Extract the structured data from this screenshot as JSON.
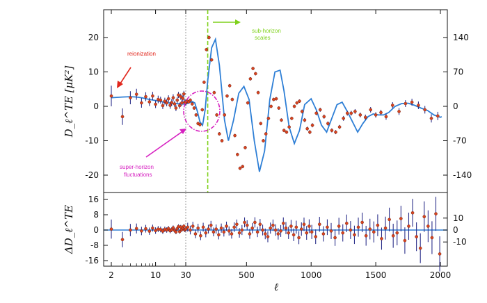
{
  "colors": {
    "model_line": "#2e7fd6",
    "data_point": "#d8431f",
    "error_bar": "#2b2f8a",
    "reionization": "#e1261c",
    "super_horizon": "#d61fc0",
    "sub_horizon": "#7fd11b",
    "divider": "#999999"
  },
  "chart_data": [
    {
      "type": "line",
      "panel": "top",
      "ylabel": "D_ℓ^TE [μK²]",
      "xscale": "piecewise: log for ℓ < 30, linear for ℓ ≥ 30",
      "ylim": [
        -26,
        28
      ],
      "yticks_left": [
        "20",
        "10",
        "0",
        "-10",
        "-20"
      ],
      "yticks_left_values": [
        20,
        10,
        0,
        -10,
        -20
      ],
      "yticks_right": [
        "140",
        "70",
        "0",
        "-70",
        "-140"
      ],
      "yticks_right_values": [
        140,
        70,
        0,
        -70,
        -140
      ],
      "right_axis_scale": 7,
      "series": [
        {
          "role": "model",
          "x": [
            2,
            3,
            4,
            5,
            6,
            8,
            10,
            15,
            20,
            25,
            30,
            40,
            60,
            80,
            100,
            120,
            140,
            160,
            180,
            200,
            230,
            260,
            290,
            308,
            330,
            360,
            400,
            440,
            480,
            520,
            560,
            600,
            640,
            680,
            720,
            760,
            790,
            830,
            870,
            910,
            950,
            1000,
            1040,
            1080,
            1120,
            1160,
            1200,
            1240,
            1280,
            1320,
            1360,
            1400,
            1440,
            1480,
            1520,
            1560,
            1600,
            1650,
            1700,
            1750,
            1800,
            1850,
            1900,
            1950,
            2000,
            2010
          ],
          "y": [
            2.5,
            2.7,
            2.8,
            2.7,
            2.5,
            2.0,
            1.7,
            1.1,
            0.8,
            0.7,
            0.6,
            0.8,
            1.1,
            1.4,
            1.0,
            -1.5,
            -4.5,
            -5.5,
            -1.0,
            7.5,
            17.0,
            19.5,
            12.0,
            5.0,
            -4.0,
            -10.0,
            -4.0,
            3.8,
            5.8,
            2.0,
            -10.0,
            -19.0,
            -13.0,
            2.0,
            10.0,
            10.5,
            4.5,
            -6.0,
            -10.8,
            -7.0,
            0.5,
            2.2,
            -1.0,
            -5.5,
            -7.5,
            -3.5,
            0.5,
            1.2,
            -1.5,
            -4.5,
            -7.5,
            -5.0,
            -3.0,
            -2.2,
            -2.5,
            -2.5,
            -1.8,
            0.0,
            0.8,
            0.9,
            0.3,
            -0.5,
            -1.2,
            -2.5,
            -3.2,
            -3.0
          ]
        },
        {
          "role": "data",
          "x": [
            2,
            3,
            4,
            5,
            6,
            7,
            8,
            9,
            10,
            11,
            12,
            13,
            14,
            15,
            16,
            17,
            18,
            19,
            20,
            21,
            22,
            23,
            24,
            25,
            26,
            27,
            28,
            29,
            30,
            40,
            52,
            65,
            80,
            95,
            110,
            125,
            140,
            158,
            172,
            190,
            210,
            230,
            250,
            270,
            290,
            310,
            330,
            350,
            370,
            390,
            410,
            430,
            450,
            470,
            490,
            510,
            530,
            550,
            570,
            590,
            610,
            630,
            650,
            670,
            690,
            710,
            730,
            750,
            770,
            790,
            810,
            830,
            850,
            870,
            890,
            910,
            930,
            950,
            970,
            990,
            1010,
            1040,
            1070,
            1100,
            1130,
            1160,
            1190,
            1220,
            1250,
            1280,
            1310,
            1340,
            1380,
            1420,
            1460,
            1500,
            1540,
            1580,
            1630,
            1680,
            1730,
            1780,
            1830,
            1880,
            1930,
            1980
          ],
          "y": [
            3.0,
            -3.0,
            2.5,
            3.5,
            1.0,
            2.8,
            1.3,
            3.0,
            0.6,
            2.0,
            1.8,
            0.2,
            1.5,
            1.0,
            2.2,
            0.3,
            1.1,
            2.5,
            0.7,
            -0.5,
            1.8,
            3.3,
            0.2,
            2.8,
            1.0,
            2.3,
            3.6,
            1.2,
            1.0,
            1.5,
            1.3,
            1.8,
            0.7,
            -0.5,
            -2.5,
            -5.0,
            -5.3,
            -1.0,
            7.0,
            16.5,
            20.0,
            13.5,
            4.0,
            -2.5,
            -8.0,
            -10.0,
            -2.5,
            3.0,
            6.0,
            2.0,
            -8.5,
            -14.0,
            -18.0,
            -17.5,
            -12.0,
            1.0,
            8.0,
            11.0,
            9.5,
            4.0,
            -5.0,
            -10.0,
            -8.0,
            -3.5,
            0.0,
            2.0,
            2.2,
            -0.5,
            -4.0,
            -7.0,
            -7.5,
            -6.0,
            -3.5,
            0.0,
            1.0,
            1.5,
            -1.5,
            -4.0,
            -6.5,
            -7.5,
            -5.5,
            -2.0,
            -1.0,
            -3.0,
            -5.0,
            -7.0,
            -7.5,
            -6.0,
            -3.5,
            -2.0,
            -2.0,
            -1.5,
            -2.5,
            -3.2,
            -1.0,
            -2.5,
            -1.8,
            -3.0,
            0.3,
            -1.5,
            0.8,
            1.2,
            0.3,
            -1.0,
            -3.5,
            -2.8
          ],
          "yerr": [
            3.0,
            2.4,
            1.9,
            1.6,
            1.4,
            1.3,
            1.2,
            1.2,
            1.1,
            1.1,
            1.0,
            1.0,
            1.0,
            1.0,
            1.0,
            1.0,
            1.0,
            1.0,
            0.9,
            0.9,
            0.9,
            0.9,
            0.9,
            0.9,
            0.9,
            0.9,
            0.9,
            0.9,
            0.9,
            0.6,
            0.5,
            0.5,
            0.5,
            0.5,
            0.5,
            0.5,
            0.5,
            0.5,
            0.5,
            0.5,
            0.5,
            0.5,
            0.5,
            0.5,
            0.5,
            0.5,
            0.5,
            0.5,
            0.5,
            0.5,
            0.5,
            0.5,
            0.5,
            0.5,
            0.5,
            0.5,
            0.5,
            0.5,
            0.5,
            0.5,
            0.5,
            0.5,
            0.5,
            0.5,
            0.5,
            0.5,
            0.5,
            0.5,
            0.5,
            0.5,
            0.5,
            0.5,
            0.5,
            0.5,
            0.5,
            0.5,
            0.6,
            0.6,
            0.6,
            0.6,
            0.6,
            0.6,
            0.6,
            0.6,
            0.6,
            0.6,
            0.6,
            0.6,
            0.7,
            0.7,
            0.7,
            0.7,
            0.7,
            0.8,
            0.8,
            0.8,
            0.8,
            0.9,
            0.9,
            1.0,
            1.0,
            1.0,
            1.1,
            1.1,
            1.2,
            1.2
          ]
        }
      ],
      "annotations": [
        {
          "text": "reionization",
          "color": "reionization"
        },
        {
          "text": "super-horizon",
          "text2": "fluctuations",
          "color": "super_horizon"
        },
        {
          "text": "sub-horizon",
          "text2": "scales",
          "color": "sub_horizon"
        }
      ],
      "vlines": [
        {
          "x": 30,
          "style": "dotted",
          "color": "divider"
        },
        {
          "x": 200,
          "style": "dashed",
          "color": "sub_horizon"
        }
      ]
    },
    {
      "type": "scatter",
      "panel": "bottom",
      "ylabel": "ΔD_ℓ^TE",
      "xlabel": "ℓ",
      "xticks": [
        "2",
        "10",
        "30",
        "500",
        "1000",
        "1500",
        "2000"
      ],
      "xticks_values": [
        2,
        10,
        30,
        500,
        1000,
        1500,
        2000
      ],
      "ylim": [
        -19,
        19
      ],
      "yticks_left": [
        "16",
        "8",
        "0",
        "-8",
        "-16"
      ],
      "yticks_left_values": [
        16,
        8,
        0,
        -8,
        -16
      ],
      "yticks_right": [
        "10",
        "0",
        "-10"
      ],
      "yticks_right_values": [
        10,
        0,
        -10
      ],
      "right_axis_scale": 1.6,
      "series": [
        {
          "role": "residuals",
          "x": [
            2,
            3,
            4,
            5,
            6,
            7,
            8,
            9,
            10,
            11,
            12,
            13,
            14,
            15,
            16,
            17,
            18,
            19,
            20,
            21,
            22,
            23,
            24,
            25,
            26,
            27,
            28,
            29,
            30,
            45,
            65,
            85,
            105,
            125,
            145,
            165,
            185,
            205,
            225,
            245,
            265,
            285,
            305,
            325,
            345,
            365,
            385,
            405,
            425,
            445,
            465,
            485,
            505,
            525,
            545,
            565,
            585,
            605,
            625,
            645,
            665,
            685,
            705,
            725,
            745,
            765,
            785,
            805,
            825,
            845,
            865,
            885,
            905,
            925,
            945,
            965,
            985,
            1005,
            1035,
            1065,
            1095,
            1125,
            1155,
            1185,
            1215,
            1245,
            1275,
            1305,
            1335,
            1365,
            1395,
            1425,
            1455,
            1485,
            1515,
            1545,
            1575,
            1605,
            1635,
            1665,
            1695,
            1725,
            1755,
            1785,
            1815,
            1845,
            1875,
            1905,
            1935,
            1965,
            1995
          ],
          "y": [
            0.5,
            -5.0,
            0.0,
            0.8,
            -0.5,
            0.7,
            -0.6,
            1.0,
            -0.3,
            0.5,
            0.3,
            -0.6,
            0.4,
            0.0,
            0.8,
            -0.4,
            0.2,
            1.2,
            -0.2,
            -1.0,
            0.7,
            1.8,
            -0.8,
            1.6,
            0.2,
            1.0,
            2.0,
            0.0,
            0.5,
            1.5,
            0.0,
            2.0,
            -2.0,
            1.0,
            -3.0,
            1.5,
            -1.5,
            0.5,
            2.5,
            -1.0,
            0.5,
            -2.5,
            1.0,
            -1.0,
            2.0,
            -0.5,
            -2.0,
            1.5,
            3.0,
            -1.5,
            0.0,
            4.0,
            2.5,
            -2.0,
            1.0,
            4.0,
            -1.0,
            3.0,
            0.0,
            -2.0,
            -3.5,
            1.0,
            2.5,
            0.0,
            -2.0,
            -0.5,
            3.5,
            1.0,
            -1.5,
            2.0,
            -2.5,
            1.5,
            -4.0,
            0.5,
            3.0,
            -1.5,
            2.0,
            -1.0,
            -3.5,
            3.0,
            -2.0,
            1.5,
            -0.5,
            -4.0,
            2.0,
            -1.5,
            3.5,
            0.0,
            -2.5,
            1.5,
            4.0,
            -3.0,
            0.5,
            -1.0,
            2.5,
            -4.5,
            1.0,
            5.5,
            -3.0,
            -1.5,
            6.0,
            -5.5,
            2.0,
            9.0,
            -3.5,
            -9.5,
            7.0,
            2.0,
            -4.0,
            8.5,
            -12.5
          ],
          "yerr": [
            5.0,
            4.0,
            3.2,
            2.6,
            2.2,
            2.0,
            1.9,
            1.8,
            1.7,
            1.6,
            1.5,
            1.5,
            1.4,
            1.4,
            1.3,
            1.3,
            1.3,
            1.2,
            1.2,
            1.2,
            1.2,
            1.2,
            1.1,
            1.1,
            1.1,
            1.1,
            1.1,
            1.1,
            1.1,
            2.3,
            2.3,
            2.3,
            2.3,
            2.3,
            2.3,
            2.3,
            2.3,
            2.3,
            2.3,
            2.3,
            2.4,
            2.4,
            2.4,
            2.4,
            2.4,
            2.4,
            2.5,
            2.5,
            2.5,
            2.5,
            2.6,
            2.6,
            2.6,
            2.6,
            2.7,
            2.7,
            2.7,
            2.8,
            2.8,
            2.8,
            2.9,
            2.9,
            3.0,
            3.0,
            3.0,
            3.1,
            3.1,
            3.2,
            3.2,
            3.3,
            3.3,
            3.4,
            3.4,
            3.5,
            3.5,
            3.6,
            3.6,
            3.7,
            3.8,
            3.9,
            4.0,
            4.1,
            4.2,
            4.3,
            4.4,
            4.5,
            4.6,
            4.7,
            4.8,
            5.0,
            5.1,
            5.2,
            5.4,
            5.5,
            5.7,
            5.8,
            6.0,
            6.2,
            6.3,
            6.5,
            6.7,
            6.9,
            7.1,
            7.3,
            7.5,
            7.8,
            8.0,
            8.3,
            8.6,
            8.9,
            9.2
          ]
        }
      ],
      "vlines": [
        {
          "x": 30,
          "style": "dotted",
          "color": "divider"
        }
      ]
    }
  ]
}
